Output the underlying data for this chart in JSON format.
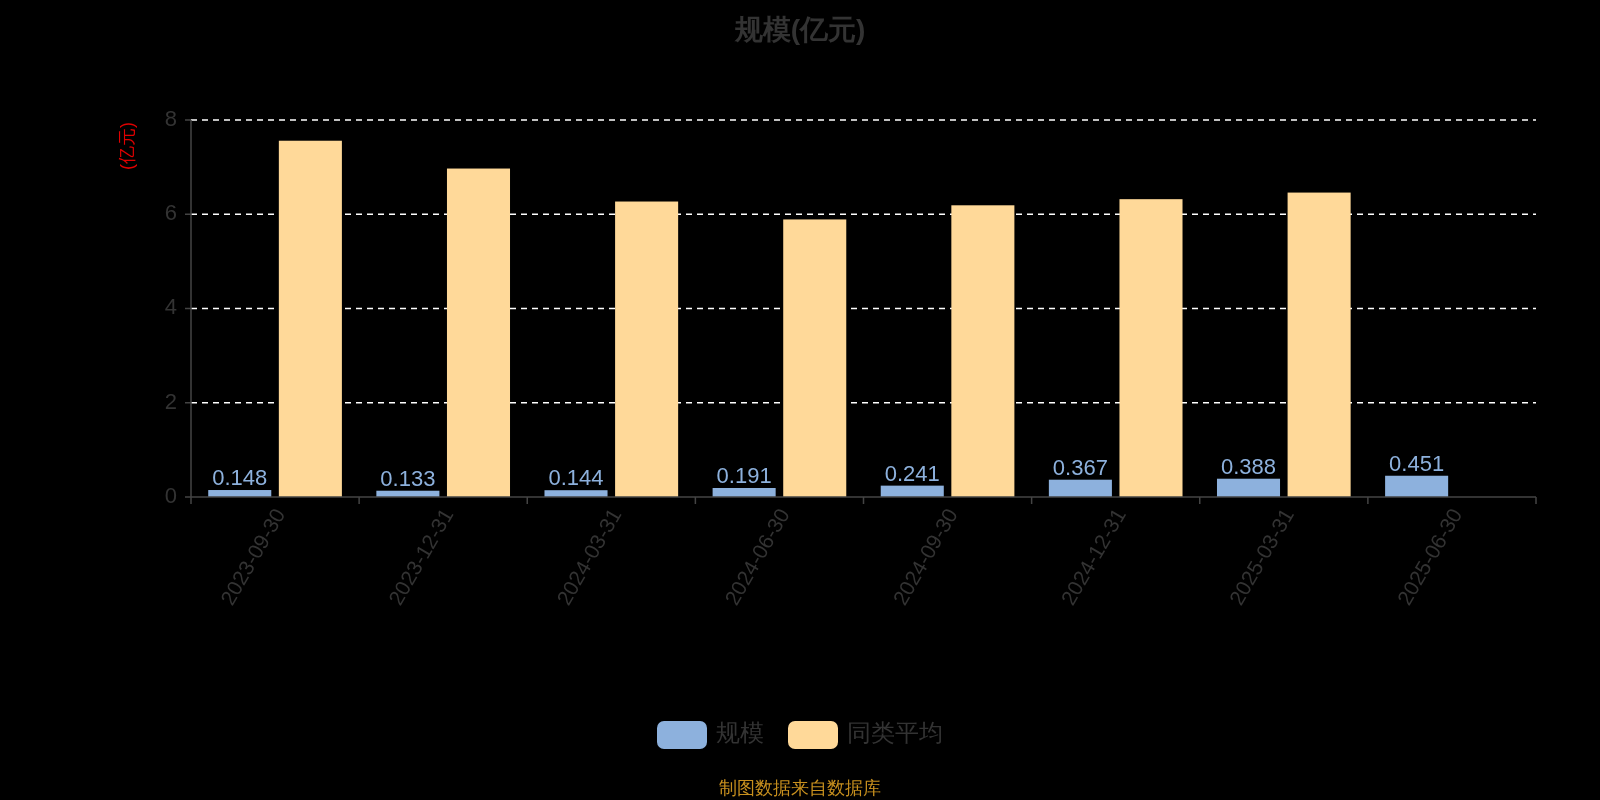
{
  "chart_data": {
    "type": "bar",
    "title": "规模(亿元)",
    "ylabel": "(亿元)",
    "categories": [
      "2023-09-30",
      "2023-12-31",
      "2024-03-31",
      "2024-06-30",
      "2024-09-30",
      "2024-12-31",
      "2025-03-31",
      "2025-06-30"
    ],
    "series": [
      {
        "name": "规模",
        "color": "#8db1dd",
        "values": [
          0.148,
          0.133,
          0.144,
          0.191,
          0.241,
          0.367,
          0.388,
          0.451
        ],
        "value_labels": [
          "0.148",
          "0.133",
          "0.144",
          "0.191",
          "0.241",
          "0.367",
          "0.388",
          "0.451"
        ]
      },
      {
        "name": "同类平均",
        "color": "#ffd999",
        "values": [
          7.56,
          6.97,
          6.27,
          5.89,
          6.19,
          6.32,
          6.46,
          null
        ]
      }
    ],
    "ylim": [
      0,
      8
    ],
    "yticks": [
      0,
      2,
      4,
      6,
      8
    ],
    "grid": "y",
    "legend": "bottom",
    "annotations": [
      "制图数据来自数据库"
    ]
  }
}
